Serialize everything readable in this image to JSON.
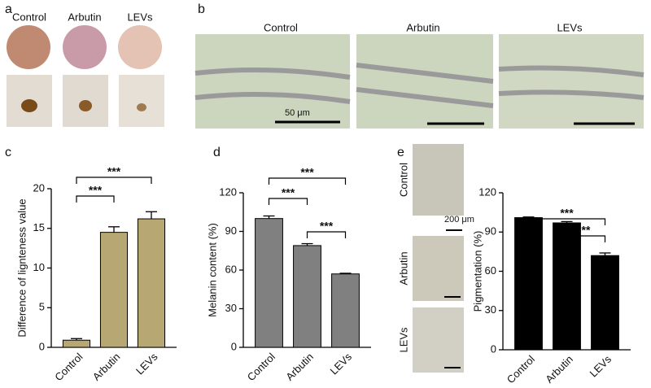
{
  "panels": {
    "a": {
      "label": "a",
      "columns": [
        "Control",
        "Arbutin",
        "LEVs"
      ]
    },
    "b": {
      "label": "b",
      "columns": [
        "Control",
        "Arbutin",
        "LEVs"
      ],
      "scale": "50 μm"
    },
    "c": {
      "label": "c"
    },
    "d": {
      "label": "d"
    },
    "e": {
      "label": "e",
      "rows": [
        "Control",
        "Arbutin",
        "LEVs"
      ],
      "scale": "200 μm"
    }
  },
  "chart_data": [
    {
      "type": "bar",
      "ylabel": "Difference of lignteness value",
      "categories": [
        "Control",
        "Arbutin",
        "LEVs"
      ],
      "values": [
        0.9,
        14.5,
        16.2
      ],
      "errors": [
        0.2,
        0.7,
        0.9
      ],
      "color": "#b7a873",
      "ylim": [
        0,
        20
      ],
      "yticks": [
        0,
        5,
        10,
        15,
        20
      ],
      "annotations": [
        {
          "text": "***",
          "between": [
            "Control",
            "Arbutin"
          ]
        },
        {
          "text": "***",
          "between": [
            "Control",
            "LEVs"
          ]
        }
      ]
    },
    {
      "type": "bar",
      "ylabel": "Melanin content (%)",
      "categories": [
        "Control",
        "Arbutin",
        "LEVs"
      ],
      "values": [
        100,
        79,
        57
      ],
      "errors": [
        2,
        1.5,
        0.5
      ],
      "color": "#808080",
      "ylim": [
        0,
        120
      ],
      "yticks": [
        0,
        30,
        60,
        90,
        120
      ],
      "annotations": [
        {
          "text": "***",
          "between": [
            "Control",
            "Arbutin"
          ]
        },
        {
          "text": "***",
          "between": [
            "Control",
            "LEVs"
          ]
        },
        {
          "text": "***",
          "between": [
            "Arbutin",
            "LEVs"
          ]
        }
      ]
    },
    {
      "type": "bar",
      "ylabel": "Pigmentation (%)",
      "categories": [
        "Control",
        "Arbutin",
        "LEVs"
      ],
      "values": [
        101,
        97,
        72
      ],
      "errors": [
        0.5,
        1,
        2
      ],
      "color": "#000000",
      "ylim": [
        0,
        120
      ],
      "yticks": [
        0,
        30,
        60,
        90,
        120
      ],
      "annotations": [
        {
          "text": "***",
          "between": [
            "Control",
            "LEVs"
          ]
        },
        {
          "text": "**",
          "between": [
            "Arbutin",
            "LEVs"
          ]
        }
      ]
    }
  ]
}
